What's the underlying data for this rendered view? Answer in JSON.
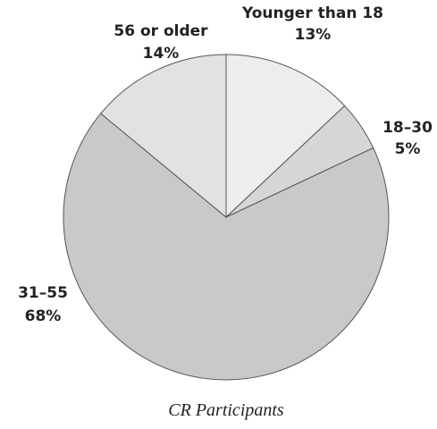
{
  "chart_data": {
    "type": "pie",
    "title": "CR Participants",
    "categories": [
      "Younger than 18",
      "18–30",
      "31–55",
      "56 or older"
    ],
    "values": [
      13,
      5,
      68,
      14
    ],
    "value_labels": [
      "13%",
      "5%",
      "68%",
      "14%"
    ],
    "colors": [
      "#ededed",
      "#d6d6d6",
      "#c9c9c9",
      "#e2e2e2"
    ]
  }
}
